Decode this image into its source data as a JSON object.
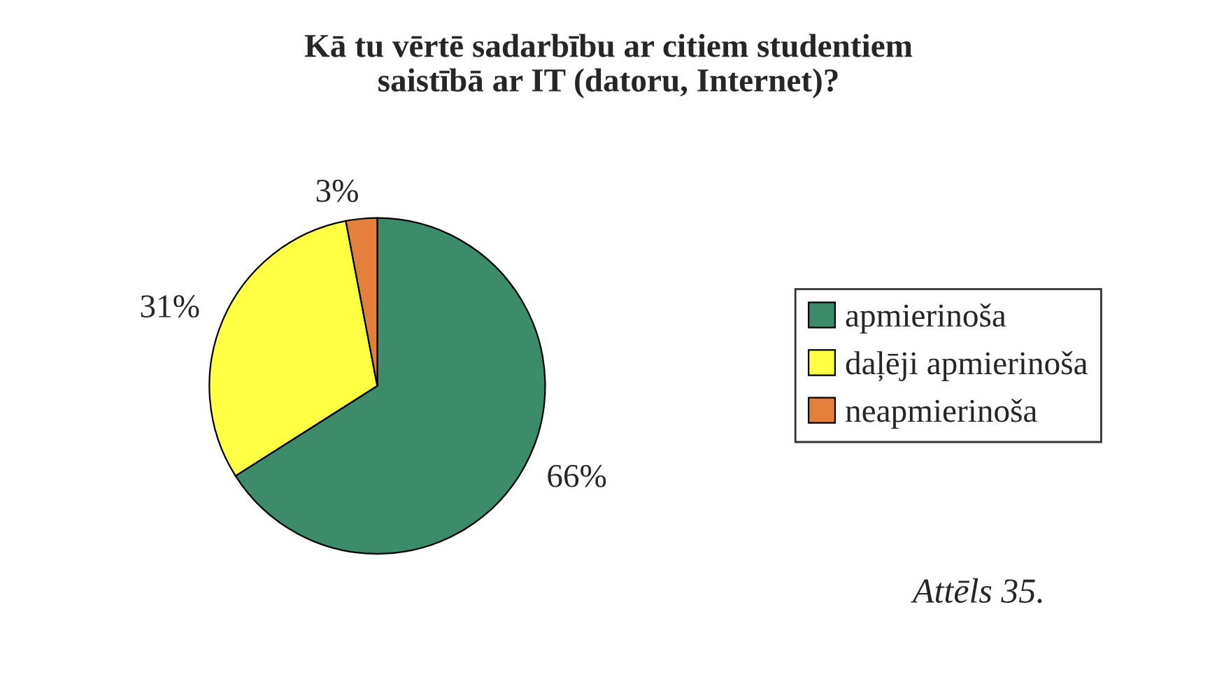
{
  "chart_data": {
    "type": "pie",
    "title": "Kā tu vērtē sadarbību ar citiem studentiem\nsaistībā ar IT (datoru, Internet)?",
    "categories": [
      "apmierinoša",
      "daļēji apmierinoša",
      "neapmierinoša"
    ],
    "values": [
      66,
      31,
      3
    ],
    "value_labels": [
      "66%",
      "31%",
      "3%"
    ],
    "colors": [
      "#3c8c6c",
      "#ffff44",
      "#e4803c"
    ],
    "legend": "right",
    "annotations": [
      "Attēls 35."
    ]
  }
}
